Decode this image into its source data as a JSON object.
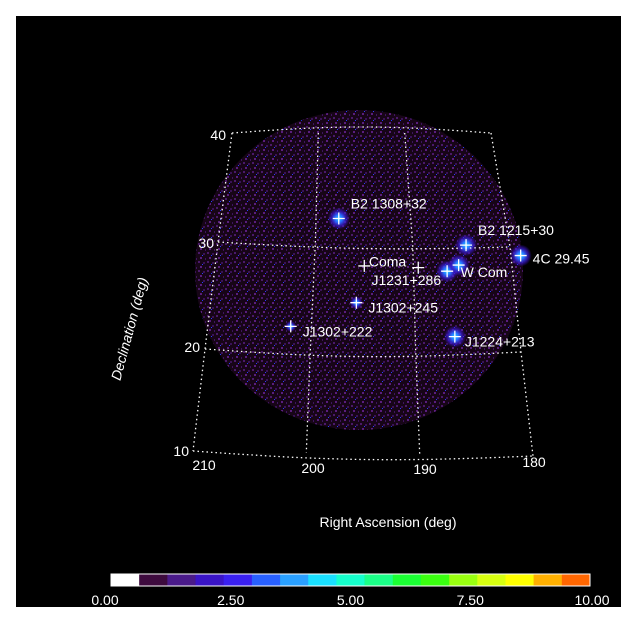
{
  "chart_data": {
    "type": "scatter",
    "title": "",
    "xlabel": "Right Ascension (deg)",
    "ylabel": "Declination (deg)",
    "xlim": [
      210,
      180
    ],
    "ylim": [
      10,
      40
    ],
    "ra_ticks": [
      "210",
      "200",
      "190",
      "180"
    ],
    "dec_ticks": [
      "40",
      "30",
      "20",
      "10"
    ],
    "grid": true,
    "sources": [
      {
        "label": "B2 1308+32",
        "ra": 197.6,
        "dec": 32.3
      },
      {
        "label": "B2 1215+30",
        "ra": 184.5,
        "dec": 30.1
      },
      {
        "label": "4C 29.45",
        "ra": 179.0,
        "dec": 29.2
      },
      {
        "label": "Coma",
        "ra": 189.5,
        "dec": 27.9
      },
      {
        "label": "J1231+286",
        "ra": 186.6,
        "dec": 27.6
      },
      {
        "label": "W Com",
        "ra": 185.4,
        "dec": 28.2
      },
      {
        "label": "J1302+245",
        "ra": 195.7,
        "dec": 24.5
      },
      {
        "label": "J1302+222",
        "ra": 202.0,
        "dec": 22.2
      },
      {
        "label": "J1224+213",
        "ra": 186.2,
        "dec": 21.4
      }
    ],
    "center_marker": {
      "ra": 194.95,
      "dec": 27.98
    },
    "colorbar": {
      "min": 0,
      "max": 10,
      "tick_labels": [
        "0.00",
        "2.50",
        "5.00",
        "7.50",
        "10.00"
      ],
      "colors": [
        "#ffffff",
        "#3d0a3d",
        "#4a1a8a",
        "#3a14c8",
        "#3a20f0",
        "#2860ff",
        "#2aa0ff",
        "#19e0ff",
        "#15ffcc",
        "#1aff88",
        "#1aff33",
        "#3aff10",
        "#99ff10",
        "#d8ff10",
        "#ffff00",
        "#ffb000",
        "#ff6600"
      ]
    }
  }
}
